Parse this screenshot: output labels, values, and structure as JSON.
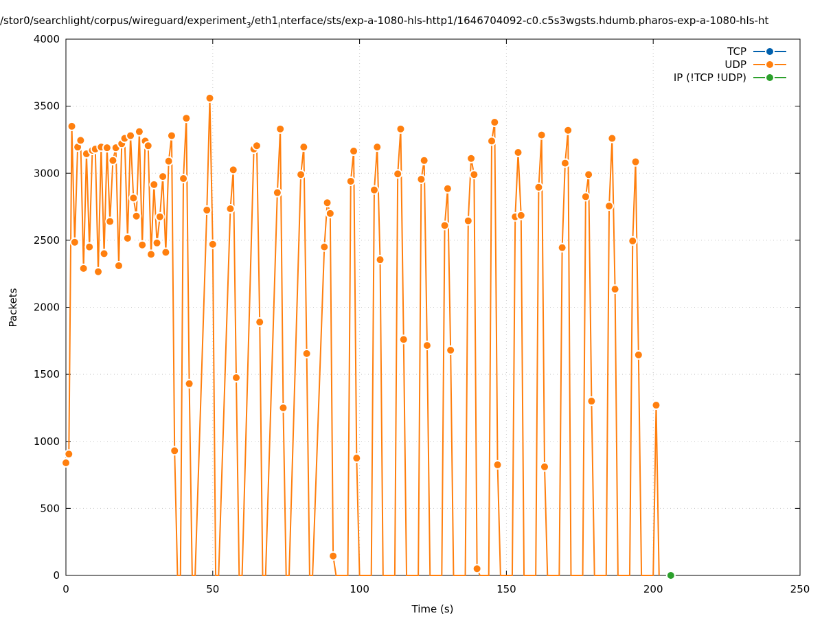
{
  "chart_data": {
    "type": "line",
    "title": "/stor0/searchlight/corpus/wireguard/experiment",
    "title_sub": "3",
    "title_mid": "/eth1",
    "title_sub2": "i",
    "title_rest": "nterface/sts/exp-a-1080-hls-http1/1646704092-c0.c5s3wgsts.hdumb.pharos-exp-a-1080-hls-ht",
    "xlabel": "Time (s)",
    "ylabel": "Packets",
    "xlim": [
      0,
      250
    ],
    "ylim": [
      0,
      4000
    ],
    "x_ticks": [
      0,
      50,
      100,
      150,
      200,
      250
    ],
    "y_ticks": [
      0,
      500,
      1000,
      1500,
      2000,
      2500,
      3000,
      3500,
      4000
    ],
    "grid": true,
    "legend_position": "top-right",
    "series": [
      {
        "name": "TCP",
        "color": "#0060ad",
        "x": [],
        "y": []
      },
      {
        "name": "UDP",
        "color": "#ff7f0e",
        "x": [
          0,
          1,
          2,
          3,
          4,
          5,
          6,
          7,
          8,
          9,
          10,
          11,
          12,
          13,
          14,
          15,
          16,
          17,
          18,
          19,
          20,
          21,
          22,
          23,
          24,
          25,
          26,
          27,
          28,
          29,
          30,
          31,
          32,
          33,
          34,
          35,
          36,
          37,
          38,
          39,
          40,
          41,
          42,
          43,
          44,
          48,
          49,
          50,
          51,
          52,
          56,
          57,
          58,
          59,
          60,
          64,
          65,
          66,
          67,
          68,
          72,
          73,
          74,
          75,
          76,
          80,
          81,
          82,
          83,
          84,
          88,
          89,
          90,
          91,
          92,
          96,
          97,
          98,
          99,
          100,
          104,
          105,
          106,
          107,
          108,
          112,
          113,
          114,
          115,
          116,
          120,
          121,
          122,
          123,
          124,
          128,
          129,
          130,
          131,
          132,
          136,
          137,
          138,
          139,
          140,
          141,
          144,
          145,
          146,
          147,
          148,
          152,
          153,
          154,
          155,
          156,
          160,
          161,
          162,
          163,
          164,
          168,
          169,
          170,
          171,
          172,
          176,
          177,
          178,
          179,
          180,
          184,
          185,
          186,
          187,
          188,
          192,
          193,
          194,
          195,
          196,
          200,
          201,
          202
        ],
        "y": [
          840,
          905,
          3350,
          2485,
          3195,
          3245,
          2290,
          3145,
          2450,
          3170,
          3180,
          2265,
          3195,
          2400,
          3190,
          2640,
          3095,
          3190,
          2310,
          3220,
          3260,
          2515,
          3280,
          2815,
          2680,
          3310,
          2465,
          3240,
          3205,
          2395,
          2915,
          2480,
          2675,
          2975,
          2410,
          3090,
          3280,
          930,
          0,
          0,
          2960,
          3410,
          1430,
          0,
          0,
          2725,
          3560,
          2470,
          0,
          0,
          2735,
          3025,
          1475,
          0,
          0,
          3180,
          3205,
          1890,
          0,
          0,
          2855,
          3330,
          1250,
          0,
          0,
          2990,
          3195,
          1655,
          0,
          0,
          2450,
          2780,
          2700,
          145,
          0,
          0,
          2940,
          3165,
          875,
          0,
          0,
          2875,
          3195,
          2355,
          0,
          0,
          2995,
          3330,
          1760,
          0,
          0,
          2955,
          3095,
          1715,
          0,
          0,
          2610,
          2885,
          1680,
          0,
          0,
          2645,
          3110,
          2990,
          50,
          0,
          0,
          3240,
          3380,
          825,
          0,
          0,
          2675,
          3155,
          2685,
          0,
          0,
          2895,
          3285,
          810,
          0,
          0,
          2445,
          3075,
          3320,
          0,
          0,
          2825,
          2990,
          1300,
          0,
          0,
          2755,
          3260,
          2135,
          0,
          0,
          2495,
          3085,
          1645,
          0,
          0,
          1270,
          0
        ]
      },
      {
        "name": "IP (!TCP  !UDP)",
        "color": "#2ca02c",
        "x": [
          206
        ],
        "y": [
          0
        ]
      }
    ]
  }
}
